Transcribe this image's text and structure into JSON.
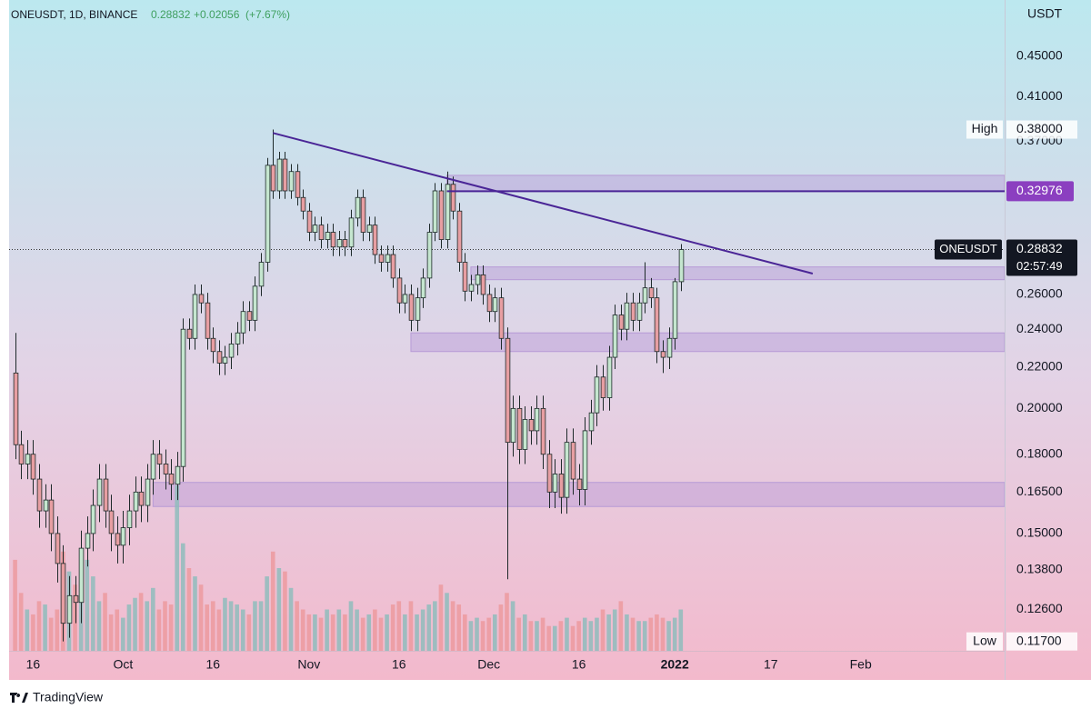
{
  "chart_data": {
    "type": "candlestick",
    "symbol": "ONEUSDT, 1D, BINANCE",
    "last": "0.28832",
    "change": "+0.02056",
    "change_pct": "(+7.67%)",
    "y_unit": "USDT",
    "brand": "TradingView",
    "log_scale": true,
    "grid": false,
    "ylim": [
      0.1145,
      0.512
    ],
    "yticks": [
      {
        "value": 0.45,
        "label": "0.45000"
      },
      {
        "value": 0.41,
        "label": "0.41000"
      },
      {
        "value": 0.37,
        "label": "0.37000"
      },
      {
        "value": 0.26,
        "label": "0.26000"
      },
      {
        "value": 0.24,
        "label": "0.24000"
      },
      {
        "value": 0.22,
        "label": "0.22000"
      },
      {
        "value": 0.2,
        "label": "0.20000"
      },
      {
        "value": 0.18,
        "label": "0.18000"
      },
      {
        "value": 0.165,
        "label": "0.16500"
      },
      {
        "value": 0.15,
        "label": "0.15000"
      },
      {
        "value": 0.138,
        "label": "0.13800"
      },
      {
        "value": 0.126,
        "label": "0.12600"
      }
    ],
    "xlim": [
      "2021-09-12",
      "2022-02-25"
    ],
    "xticks": [
      {
        "value": "2021-09-16",
        "label": "16"
      },
      {
        "value": "2021-10-01",
        "label": "Oct"
      },
      {
        "value": "2021-10-16",
        "label": "16"
      },
      {
        "value": "2021-11-01",
        "label": "Nov"
      },
      {
        "value": "2021-11-16",
        "label": "16"
      },
      {
        "value": "2021-12-01",
        "label": "Dec"
      },
      {
        "value": "2021-12-16",
        "label": "16"
      },
      {
        "value": "2022-01-01",
        "label": "2022"
      },
      {
        "value": "2022-01-17",
        "label": "17"
      },
      {
        "value": "2022-02-01",
        "label": "Feb"
      }
    ],
    "up_color": "#c5e6cf",
    "down_color": "#e79ea2",
    "wick_color": "#1e2a2a",
    "volume_up_color": "#8fbcbc",
    "volume_down_color": "#ec9a9f",
    "zone_color": "#b79ad6",
    "line_color": "#4a2596",
    "x": [
      "2021-09-13",
      "2021-09-14",
      "2021-09-15",
      "2021-09-16",
      "2021-09-17",
      "2021-09-18",
      "2021-09-19",
      "2021-09-20",
      "2021-09-21",
      "2021-09-22",
      "2021-09-23",
      "2021-09-24",
      "2021-09-25",
      "2021-09-26",
      "2021-09-27",
      "2021-09-28",
      "2021-09-29",
      "2021-09-30",
      "2021-10-01",
      "2021-10-02",
      "2021-10-03",
      "2021-10-04",
      "2021-10-05",
      "2021-10-06",
      "2021-10-07",
      "2021-10-08",
      "2021-10-09",
      "2021-10-10",
      "2021-10-11",
      "2021-10-12",
      "2021-10-13",
      "2021-10-14",
      "2021-10-15",
      "2021-10-16",
      "2021-10-17",
      "2021-10-18",
      "2021-10-19",
      "2021-10-20",
      "2021-10-21",
      "2021-10-22",
      "2021-10-23",
      "2021-10-24",
      "2021-10-25",
      "2021-10-26",
      "2021-10-27",
      "2021-10-28",
      "2021-10-29",
      "2021-10-30",
      "2021-10-31",
      "2021-11-01",
      "2021-11-02",
      "2021-11-03",
      "2021-11-04",
      "2021-11-05",
      "2021-11-06",
      "2021-11-07",
      "2021-11-08",
      "2021-11-09",
      "2021-11-10",
      "2021-11-11",
      "2021-11-12",
      "2021-11-13",
      "2021-11-14",
      "2021-11-15",
      "2021-11-16",
      "2021-11-17",
      "2021-11-18",
      "2021-11-19",
      "2021-11-20",
      "2021-11-21",
      "2021-11-22",
      "2021-11-23",
      "2021-11-24",
      "2021-11-25",
      "2021-11-26",
      "2021-11-27",
      "2021-11-28",
      "2021-11-29",
      "2021-11-30",
      "2021-12-01",
      "2021-12-02",
      "2021-12-03",
      "2021-12-04",
      "2021-12-05",
      "2021-12-06",
      "2021-12-07",
      "2021-12-08",
      "2021-12-09",
      "2021-12-10",
      "2021-12-11",
      "2021-12-12",
      "2021-12-13",
      "2021-12-14",
      "2021-12-15",
      "2021-12-16",
      "2021-12-17",
      "2021-12-18",
      "2021-12-19",
      "2021-12-20",
      "2021-12-21",
      "2021-12-22",
      "2021-12-23",
      "2021-12-24",
      "2021-12-25",
      "2021-12-26",
      "2021-12-27",
      "2021-12-28",
      "2021-12-29",
      "2021-12-30",
      "2021-12-31",
      "2022-01-01",
      "2022-01-02"
    ],
    "open": [
      0.217,
      0.184,
      0.176,
      0.18,
      0.17,
      0.158,
      0.162,
      0.15,
      0.14,
      0.122,
      0.13,
      0.128,
      0.145,
      0.15,
      0.16,
      0.17,
      0.158,
      0.15,
      0.146,
      0.152,
      0.158,
      0.165,
      0.16,
      0.17,
      0.18,
      0.176,
      0.172,
      0.168,
      0.175,
      0.24,
      0.235,
      0.26,
      0.255,
      0.235,
      0.228,
      0.222,
      0.225,
      0.232,
      0.238,
      0.25,
      0.245,
      0.265,
      0.28,
      0.35,
      0.33,
      0.355,
      0.33,
      0.345,
      0.325,
      0.315,
      0.3,
      0.305,
      0.295,
      0.3,
      0.29,
      0.295,
      0.29,
      0.31,
      0.325,
      0.3,
      0.305,
      0.285,
      0.28,
      0.285,
      0.27,
      0.255,
      0.26,
      0.245,
      0.258,
      0.27,
      0.3,
      0.33,
      0.295,
      0.335,
      0.315,
      0.28,
      0.262,
      0.266,
      0.272,
      0.26,
      0.25,
      0.258,
      0.235,
      0.185,
      0.2,
      0.182,
      0.195,
      0.19,
      0.2,
      0.18,
      0.165,
      0.172,
      0.163,
      0.185,
      0.17,
      0.166,
      0.19,
      0.198,
      0.215,
      0.205,
      0.225,
      0.248,
      0.24,
      0.255,
      0.245,
      0.255,
      0.264,
      0.258,
      0.228,
      0.225,
      0.235,
      0.26776
    ],
    "high": [
      0.238,
      0.19,
      0.186,
      0.186,
      0.176,
      0.168,
      0.168,
      0.156,
      0.146,
      0.136,
      0.136,
      0.151,
      0.156,
      0.166,
      0.176,
      0.176,
      0.164,
      0.156,
      0.158,
      0.164,
      0.171,
      0.171,
      0.176,
      0.186,
      0.186,
      0.182,
      0.178,
      0.181,
      0.246,
      0.246,
      0.266,
      0.266,
      0.261,
      0.241,
      0.234,
      0.231,
      0.238,
      0.244,
      0.256,
      0.256,
      0.271,
      0.286,
      0.356,
      0.38,
      0.361,
      0.361,
      0.351,
      0.351,
      0.331,
      0.321,
      0.311,
      0.311,
      0.306,
      0.306,
      0.301,
      0.301,
      0.316,
      0.331,
      0.331,
      0.311,
      0.311,
      0.291,
      0.291,
      0.291,
      0.276,
      0.266,
      0.266,
      0.264,
      0.276,
      0.306,
      0.336,
      0.336,
      0.345,
      0.341,
      0.321,
      0.286,
      0.272,
      0.278,
      0.278,
      0.266,
      0.264,
      0.264,
      0.241,
      0.206,
      0.206,
      0.201,
      0.201,
      0.206,
      0.206,
      0.186,
      0.178,
      0.178,
      0.191,
      0.191,
      0.176,
      0.196,
      0.204,
      0.221,
      0.221,
      0.231,
      0.254,
      0.254,
      0.261,
      0.261,
      0.261,
      0.28,
      0.27,
      0.264,
      0.234,
      0.241,
      0.27,
      0.292
    ],
    "low": [
      0.178,
      0.17,
      0.17,
      0.164,
      0.152,
      0.152,
      0.144,
      0.134,
      0.117,
      0.118,
      0.122,
      0.122,
      0.139,
      0.144,
      0.154,
      0.152,
      0.144,
      0.14,
      0.14,
      0.146,
      0.152,
      0.154,
      0.154,
      0.164,
      0.17,
      0.166,
      0.162,
      0.162,
      0.169,
      0.229,
      0.229,
      0.249,
      0.229,
      0.222,
      0.216,
      0.216,
      0.219,
      0.226,
      0.232,
      0.239,
      0.239,
      0.259,
      0.274,
      0.324,
      0.324,
      0.324,
      0.324,
      0.319,
      0.309,
      0.294,
      0.294,
      0.289,
      0.289,
      0.284,
      0.284,
      0.284,
      0.284,
      0.304,
      0.294,
      0.294,
      0.279,
      0.274,
      0.274,
      0.264,
      0.249,
      0.249,
      0.239,
      0.239,
      0.252,
      0.264,
      0.294,
      0.289,
      0.289,
      0.309,
      0.274,
      0.256,
      0.256,
      0.26,
      0.254,
      0.244,
      0.244,
      0.229,
      0.135,
      0.179,
      0.176,
      0.176,
      0.184,
      0.184,
      0.174,
      0.159,
      0.159,
      0.157,
      0.157,
      0.164,
      0.16,
      0.16,
      0.184,
      0.192,
      0.199,
      0.199,
      0.219,
      0.234,
      0.234,
      0.239,
      0.239,
      0.249,
      0.252,
      0.222,
      0.217,
      0.219,
      0.229,
      0.262
    ],
    "close": [
      0.184,
      0.176,
      0.18,
      0.17,
      0.158,
      0.162,
      0.15,
      0.14,
      0.122,
      0.13,
      0.128,
      0.145,
      0.15,
      0.16,
      0.17,
      0.158,
      0.15,
      0.146,
      0.152,
      0.158,
      0.165,
      0.16,
      0.17,
      0.18,
      0.176,
      0.172,
      0.168,
      0.175,
      0.24,
      0.235,
      0.26,
      0.255,
      0.235,
      0.228,
      0.222,
      0.225,
      0.232,
      0.238,
      0.25,
      0.245,
      0.265,
      0.28,
      0.35,
      0.33,
      0.355,
      0.33,
      0.345,
      0.325,
      0.315,
      0.3,
      0.305,
      0.295,
      0.3,
      0.29,
      0.295,
      0.29,
      0.31,
      0.325,
      0.3,
      0.305,
      0.285,
      0.28,
      0.285,
      0.27,
      0.255,
      0.26,
      0.245,
      0.258,
      0.27,
      0.3,
      0.33,
      0.295,
      0.335,
      0.315,
      0.28,
      0.262,
      0.266,
      0.272,
      0.26,
      0.25,
      0.258,
      0.235,
      0.185,
      0.2,
      0.182,
      0.195,
      0.19,
      0.2,
      0.18,
      0.165,
      0.172,
      0.163,
      0.185,
      0.17,
      0.166,
      0.19,
      0.198,
      0.215,
      0.205,
      0.225,
      0.248,
      0.24,
      0.255,
      0.245,
      0.255,
      0.264,
      0.258,
      0.228,
      0.225,
      0.235,
      0.26776,
      0.28832
    ],
    "volume": [
      55,
      35,
      25,
      22,
      30,
      28,
      20,
      25,
      60,
      48,
      40,
      42,
      55,
      45,
      30,
      35,
      22,
      25,
      20,
      28,
      32,
      35,
      30,
      38,
      25,
      30,
      28,
      100,
      65,
      50,
      45,
      40,
      28,
      30,
      25,
      32,
      30,
      28,
      25,
      22,
      30,
      30,
      45,
      60,
      50,
      48,
      38,
      30,
      25,
      22,
      22,
      20,
      25,
      22,
      25,
      22,
      30,
      25,
      20,
      22,
      25,
      20,
      22,
      28,
      30,
      22,
      30,
      22,
      25,
      28,
      30,
      40,
      35,
      30,
      28,
      22,
      18,
      20,
      18,
      20,
      22,
      28,
      35,
      30,
      20,
      22,
      18,
      18,
      20,
      15,
      15,
      18,
      20,
      15,
      18,
      20,
      18,
      20,
      25,
      22,
      25,
      30,
      22,
      20,
      18,
      18,
      20,
      22,
      20,
      18,
      20,
      25
    ],
    "zones": [
      {
        "from": "2021-11-24",
        "top": 0.342,
        "bottom": 0.3297
      },
      {
        "from": "2021-11-28",
        "top": 0.277,
        "bottom": 0.269
      },
      {
        "from": "2021-11-18",
        "top": 0.238,
        "bottom": 0.228
      },
      {
        "from": "2021-10-06",
        "top": 0.1687,
        "bottom": 0.1596
      }
    ],
    "trend_line": {
      "from_date": "2021-10-26",
      "from_value": 0.377,
      "to_date": "2022-01-24",
      "to_value": 0.2728
    },
    "level": {
      "from": "2021-11-24",
      "value": 0.32976
    },
    "price_tag": {
      "name": "ONEUSDT",
      "value": 0.28832,
      "countdown": "02:57:49"
    },
    "high_marker": {
      "label": "High",
      "value": 0.38,
      "value_label": "0.38000"
    },
    "low_marker": {
      "label": "Low",
      "value": 0.117,
      "value_label": "0.11700"
    }
  }
}
